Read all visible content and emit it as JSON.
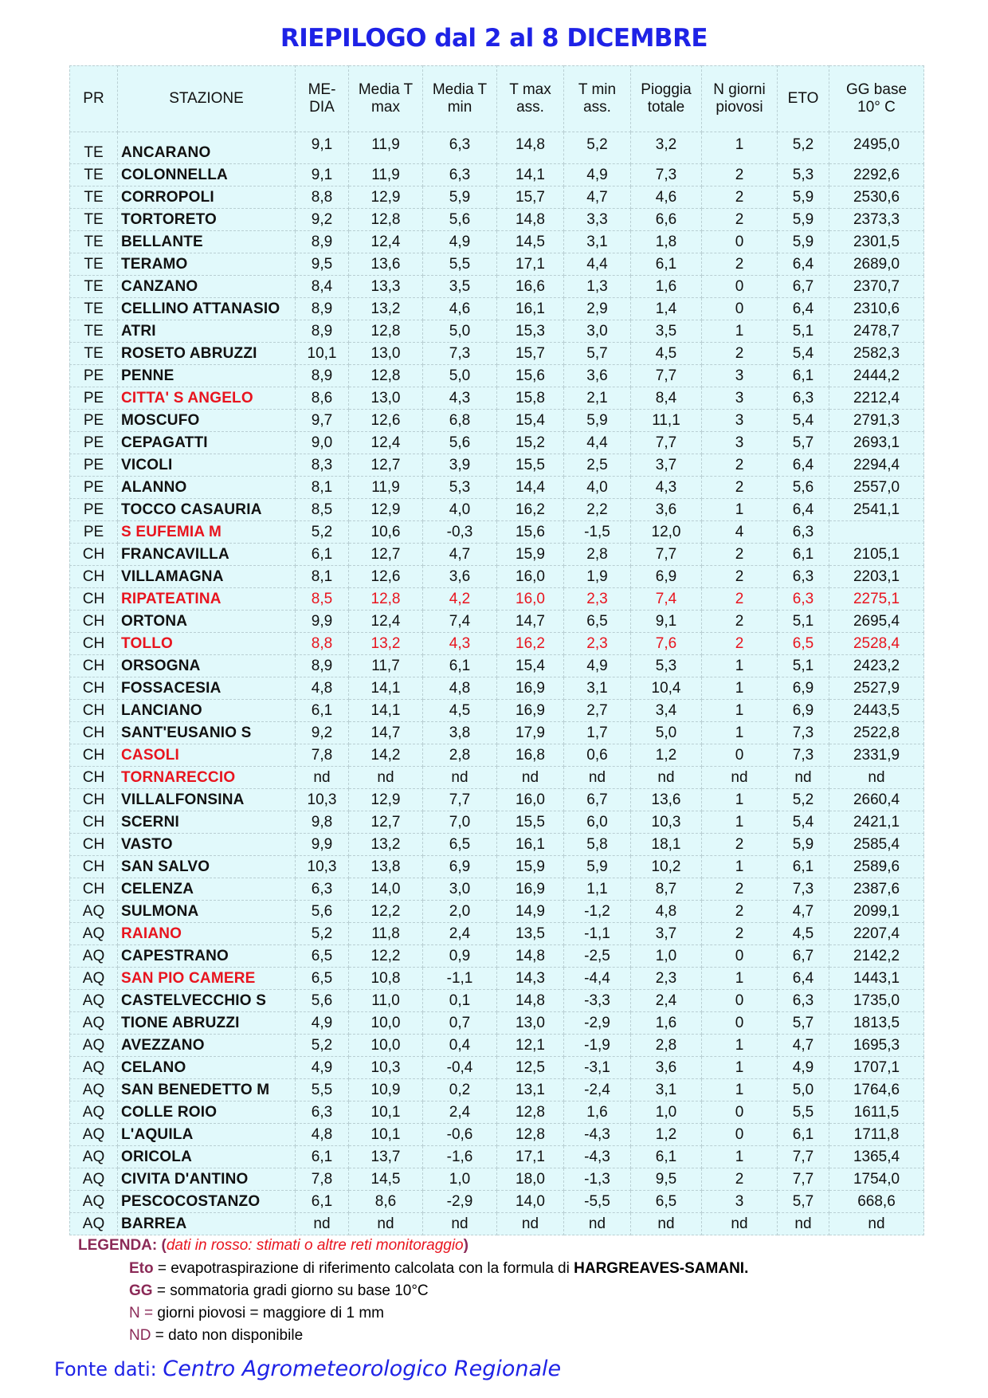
{
  "title": "RIEPILOGO dal 2 al 8 DICEMBRE",
  "columns": [
    "PR",
    "STAZIONE",
    "ME-\nDIA",
    "Media T\nmax",
    "Media T\nmin",
    "T max\nass.",
    "T min\nass.",
    "Pioggia\ntotale",
    "N giorni\npiovosi",
    "ETO",
    "GG base\n10° C"
  ],
  "colors": {
    "title": "#1e22e6",
    "estimated_red": "#e8141e",
    "table_bg": "#e1f9fb",
    "legend_key": "#8b2a57"
  },
  "rows": [
    {
      "pr": "TE",
      "name": "ANCARANO",
      "v": [
        "9,1",
        "11,9",
        "6,3",
        "14,8",
        "5,2",
        "3,2",
        "1",
        "5,2",
        "2495,0"
      ],
      "red": ""
    },
    {
      "pr": "TE",
      "name": "COLONNELLA",
      "v": [
        "9,1",
        "11,9",
        "6,3",
        "14,1",
        "4,9",
        "7,3",
        "2",
        "5,3",
        "2292,6"
      ],
      "red": ""
    },
    {
      "pr": "TE",
      "name": "CORROPOLI",
      "v": [
        "8,8",
        "12,9",
        "5,9",
        "15,7",
        "4,7",
        "4,6",
        "2",
        "5,9",
        "2530,6"
      ],
      "red": ""
    },
    {
      "pr": "TE",
      "name": "TORTORETO",
      "v": [
        "9,2",
        "12,8",
        "5,6",
        "14,8",
        "3,3",
        "6,6",
        "2",
        "5,9",
        "2373,3"
      ],
      "red": ""
    },
    {
      "pr": "TE",
      "name": "BELLANTE",
      "v": [
        "8,9",
        "12,4",
        "4,9",
        "14,5",
        "3,1",
        "1,8",
        "0",
        "5,9",
        "2301,5"
      ],
      "red": ""
    },
    {
      "pr": "TE",
      "name": "TERAMO",
      "v": [
        "9,5",
        "13,6",
        "5,5",
        "17,1",
        "4,4",
        "6,1",
        "2",
        "6,4",
        "2689,0"
      ],
      "red": ""
    },
    {
      "pr": "TE",
      "name": "CANZANO",
      "v": [
        "8,4",
        "13,3",
        "3,5",
        "16,6",
        "1,3",
        "1,6",
        "0",
        "6,7",
        "2370,7"
      ],
      "red": ""
    },
    {
      "pr": "TE",
      "name": "CELLINO ATTANASIO",
      "v": [
        "8,9",
        "13,2",
        "4,6",
        "16,1",
        "2,9",
        "1,4",
        "0",
        "6,4",
        "2310,6"
      ],
      "red": ""
    },
    {
      "pr": "TE",
      "name": "ATRI",
      "v": [
        "8,9",
        "12,8",
        "5,0",
        "15,3",
        "3,0",
        "3,5",
        "1",
        "5,1",
        "2478,7"
      ],
      "red": ""
    },
    {
      "pr": "TE",
      "name": "ROSETO ABRUZZI",
      "v": [
        "10,1",
        "13,0",
        "7,3",
        "15,7",
        "5,7",
        "4,5",
        "2",
        "5,4",
        "2582,3"
      ],
      "red": ""
    },
    {
      "pr": "PE",
      "name": "PENNE",
      "v": [
        "8,9",
        "12,8",
        "5,0",
        "15,6",
        "3,6",
        "7,7",
        "3",
        "6,1",
        "2444,2"
      ],
      "red": ""
    },
    {
      "pr": "PE",
      "name": "CITTA' S ANGELO",
      "v": [
        "8,6",
        "13,0",
        "4,3",
        "15,8",
        "2,1",
        "8,4",
        "3",
        "6,3",
        "2212,4"
      ],
      "red": "name"
    },
    {
      "pr": "PE",
      "name": "MOSCUFO",
      "v": [
        "9,7",
        "12,6",
        "6,8",
        "15,4",
        "5,9",
        "11,1",
        "3",
        "5,4",
        "2791,3"
      ],
      "red": ""
    },
    {
      "pr": "PE",
      "name": "CEPAGATTI",
      "v": [
        "9,0",
        "12,4",
        "5,6",
        "15,2",
        "4,4",
        "7,7",
        "3",
        "5,7",
        "2693,1"
      ],
      "red": ""
    },
    {
      "pr": "PE",
      "name": "VICOLI",
      "v": [
        "8,3",
        "12,7",
        "3,9",
        "15,5",
        "2,5",
        "3,7",
        "2",
        "6,4",
        "2294,4"
      ],
      "red": ""
    },
    {
      "pr": "PE",
      "name": "ALANNO",
      "v": [
        "8,1",
        "11,9",
        "5,3",
        "14,4",
        "4,0",
        "4,3",
        "2",
        "5,6",
        "2557,0"
      ],
      "red": ""
    },
    {
      "pr": "PE",
      "name": "TOCCO CASAURIA",
      "v": [
        "8,5",
        "12,9",
        "4,0",
        "16,2",
        "2,2",
        "3,6",
        "1",
        "6,4",
        "2541,1"
      ],
      "red": ""
    },
    {
      "pr": "PE",
      "name": "S EUFEMIA M",
      "v": [
        "5,2",
        "10,6",
        "-0,3",
        "15,6",
        "-1,5",
        "12,0",
        "4",
        "6,3",
        ""
      ],
      "red": "name"
    },
    {
      "pr": "CH",
      "name": "FRANCAVILLA",
      "v": [
        "6,1",
        "12,7",
        "4,7",
        "15,9",
        "2,8",
        "7,7",
        "2",
        "6,1",
        "2105,1"
      ],
      "red": ""
    },
    {
      "pr": "CH",
      "name": "VILLAMAGNA",
      "v": [
        "8,1",
        "12,6",
        "3,6",
        "16,0",
        "1,9",
        "6,9",
        "2",
        "6,3",
        "2203,1"
      ],
      "red": ""
    },
    {
      "pr": "CH",
      "name": "RIPATEATINA",
      "v": [
        "8,5",
        "12,8",
        "4,2",
        "16,0",
        "2,3",
        "7,4",
        "2",
        "6,3",
        "2275,1"
      ],
      "red": "all"
    },
    {
      "pr": "CH",
      "name": "ORTONA",
      "v": [
        "9,9",
        "12,4",
        "7,4",
        "14,7",
        "6,5",
        "9,1",
        "2",
        "5,1",
        "2695,4"
      ],
      "red": ""
    },
    {
      "pr": "CH",
      "name": "TOLLO",
      "v": [
        "8,8",
        "13,2",
        "4,3",
        "16,2",
        "2,3",
        "7,6",
        "2",
        "6,5",
        "2528,4"
      ],
      "red": "all"
    },
    {
      "pr": "CH",
      "name": "ORSOGNA",
      "v": [
        "8,9",
        "11,7",
        "6,1",
        "15,4",
        "4,9",
        "5,3",
        "1",
        "5,1",
        "2423,2"
      ],
      "red": ""
    },
    {
      "pr": "CH",
      "name": "FOSSACESIA",
      "v": [
        "4,8",
        "14,1",
        "4,8",
        "16,9",
        "3,1",
        "10,4",
        "1",
        "6,9",
        "2527,9"
      ],
      "red": ""
    },
    {
      "pr": "CH",
      "name": "LANCIANO",
      "v": [
        "6,1",
        "14,1",
        "4,5",
        "16,9",
        "2,7",
        "3,4",
        "1",
        "6,9",
        "2443,5"
      ],
      "red": ""
    },
    {
      "pr": "CH",
      "name": "SANT'EUSANIO S",
      "v": [
        "9,2",
        "14,7",
        "3,8",
        "17,9",
        "1,7",
        "5,0",
        "1",
        "7,3",
        "2522,8"
      ],
      "red": ""
    },
    {
      "pr": "CH",
      "name": "CASOLI",
      "v": [
        "7,8",
        "14,2",
        "2,8",
        "16,8",
        "0,6",
        "1,2",
        "0",
        "7,3",
        "2331,9"
      ],
      "red": "name"
    },
    {
      "pr": "CH",
      "name": "TORNARECCIO",
      "v": [
        "nd",
        "nd",
        "nd",
        "nd",
        "nd",
        "nd",
        "nd",
        "nd",
        "nd"
      ],
      "red": "name"
    },
    {
      "pr": "CH",
      "name": "VILLALFONSINA",
      "v": [
        "10,3",
        "12,9",
        "7,7",
        "16,0",
        "6,7",
        "13,6",
        "1",
        "5,2",
        "2660,4"
      ],
      "red": ""
    },
    {
      "pr": "CH",
      "name": "SCERNI",
      "v": [
        "9,8",
        "12,7",
        "7,0",
        "15,5",
        "6,0",
        "10,3",
        "1",
        "5,4",
        "2421,1"
      ],
      "red": ""
    },
    {
      "pr": "CH",
      "name": "VASTO",
      "v": [
        "9,9",
        "13,2",
        "6,5",
        "16,1",
        "5,8",
        "18,1",
        "2",
        "5,9",
        "2585,4"
      ],
      "red": ""
    },
    {
      "pr": "CH",
      "name": "SAN SALVO",
      "v": [
        "10,3",
        "13,8",
        "6,9",
        "15,9",
        "5,9",
        "10,2",
        "1",
        "6,1",
        "2589,6"
      ],
      "red": ""
    },
    {
      "pr": "CH",
      "name": "CELENZA",
      "v": [
        "6,3",
        "14,0",
        "3,0",
        "16,9",
        "1,1",
        "8,7",
        "2",
        "7,3",
        "2387,6"
      ],
      "red": ""
    },
    {
      "pr": "AQ",
      "name": "SULMONA",
      "v": [
        "5,6",
        "12,2",
        "2,0",
        "14,9",
        "-1,2",
        "4,8",
        "2",
        "4,7",
        "2099,1"
      ],
      "red": ""
    },
    {
      "pr": "AQ",
      "name": "RAIANO",
      "v": [
        "5,2",
        "11,8",
        "2,4",
        "13,5",
        "-1,1",
        "3,7",
        "2",
        "4,5",
        "2207,4"
      ],
      "red": "name"
    },
    {
      "pr": "AQ",
      "name": "CAPESTRANO",
      "v": [
        "6,5",
        "12,2",
        "0,9",
        "14,8",
        "-2,5",
        "1,0",
        "0",
        "6,7",
        "2142,2"
      ],
      "red": ""
    },
    {
      "pr": "AQ",
      "name": "SAN PIO CAMERE",
      "v": [
        "6,5",
        "10,8",
        "-1,1",
        "14,3",
        "-4,4",
        "2,3",
        "1",
        "6,4",
        "1443,1"
      ],
      "red": "name"
    },
    {
      "pr": "AQ",
      "name": "CASTELVECCHIO S",
      "v": [
        "5,6",
        "11,0",
        "0,1",
        "14,8",
        "-3,3",
        "2,4",
        "0",
        "6,3",
        "1735,0"
      ],
      "red": ""
    },
    {
      "pr": "AQ",
      "name": "TIONE ABRUZZI",
      "v": [
        "4,9",
        "10,0",
        "0,7",
        "13,0",
        "-2,9",
        "1,6",
        "0",
        "5,7",
        "1813,5"
      ],
      "red": ""
    },
    {
      "pr": "AQ",
      "name": "AVEZZANO",
      "v": [
        "5,2",
        "10,0",
        "0,4",
        "12,1",
        "-1,9",
        "2,8",
        "1",
        "4,7",
        "1695,3"
      ],
      "red": ""
    },
    {
      "pr": "AQ",
      "name": "CELANO",
      "v": [
        "4,9",
        "10,3",
        "-0,4",
        "12,5",
        "-3,1",
        "3,6",
        "1",
        "4,9",
        "1707,1"
      ],
      "red": ""
    },
    {
      "pr": "AQ",
      "name": "SAN BENEDETTO M",
      "v": [
        "5,5",
        "10,9",
        "0,2",
        "13,1",
        "-2,4",
        "3,1",
        "1",
        "5,0",
        "1764,6"
      ],
      "red": ""
    },
    {
      "pr": "AQ",
      "name": "COLLE ROIO",
      "v": [
        "6,3",
        "10,1",
        "2,4",
        "12,8",
        "1,6",
        "1,0",
        "0",
        "5,5",
        "1611,5"
      ],
      "red": ""
    },
    {
      "pr": "AQ",
      "name": "L'AQUILA",
      "v": [
        "4,8",
        "10,1",
        "-0,6",
        "12,8",
        "-4,3",
        "1,2",
        "0",
        "6,1",
        "1711,8"
      ],
      "red": ""
    },
    {
      "pr": "AQ",
      "name": "ORICOLA",
      "v": [
        "6,1",
        "13,7",
        "-1,6",
        "17,1",
        "-4,3",
        "6,1",
        "1",
        "7,7",
        "1365,4"
      ],
      "red": ""
    },
    {
      "pr": "AQ",
      "name": "CIVITA D'ANTINO",
      "v": [
        "7,8",
        "14,5",
        "1,0",
        "18,0",
        "-1,3",
        "9,5",
        "2",
        "7,7",
        "1754,0"
      ],
      "red": ""
    },
    {
      "pr": "AQ",
      "name": "PESCOCOSTANZO",
      "v": [
        "6,1",
        "8,6",
        "-2,9",
        "14,0",
        "-5,5",
        "6,5",
        "3",
        "5,7",
        "668,6"
      ],
      "red": ""
    },
    {
      "pr": "AQ",
      "name": "BARREA",
      "v": [
        "nd",
        "nd",
        "nd",
        "nd",
        "nd",
        "nd",
        "nd",
        "nd",
        "nd"
      ],
      "red": ""
    }
  ],
  "legend": {
    "heading": "LEGENDA:",
    "open": "(",
    "note": "dati in rosso: stimati o altre reti monitoraggio",
    "close": ")",
    "eto_key": "Eto",
    "eto_text": " = evapotraspirazione di riferimento calcolata con la formula di ",
    "eto_bold": "HARGREAVES-SAMANI.",
    "gg_key": "GG",
    "gg_text": " = sommatoria gradi giorno su base 10°C",
    "n_key": "N =",
    "n_text": " giorni piovosi = maggiore di 1 mm",
    "nd_key": "ND",
    "nd_text": " = dato non disponibile"
  },
  "source": {
    "label": "Fonte dati: ",
    "name": "Centro Agrometeorologico Regionale"
  }
}
